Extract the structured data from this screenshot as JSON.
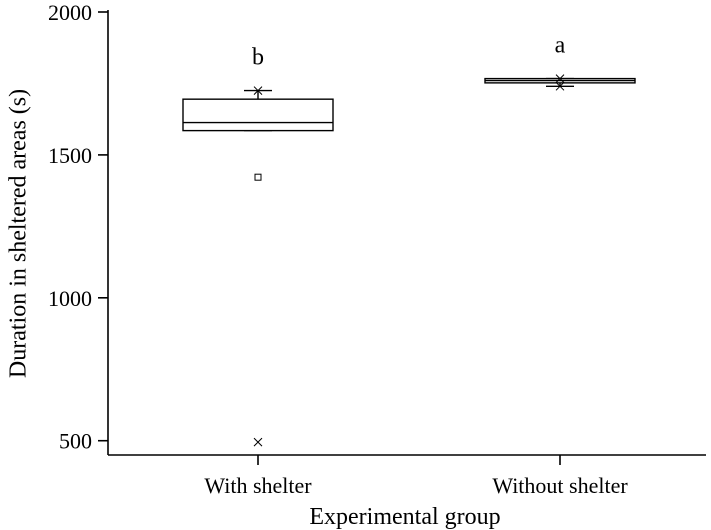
{
  "chart_data": {
    "type": "box",
    "xlabel": "Experimental group",
    "ylabel": "Duration in sheltered areas (s)",
    "ylim": [
      450,
      2000
    ],
    "yticks": [
      500,
      1000,
      1500,
      2000
    ],
    "grid": false,
    "legend": "none",
    "categories": [
      "With shelter",
      "Without shelter"
    ],
    "groups": [
      {
        "name": "With shelter",
        "significance_letter": "b",
        "q1": 1585,
        "median": 1613,
        "q3": 1695,
        "whisker_low": 1585,
        "whisker_high": 1725,
        "outliers_square": [
          1422
        ],
        "outliers_cross": [
          1725,
          495
        ]
      },
      {
        "name": "Without shelter",
        "significance_letter": "a",
        "q1": 1752,
        "median": 1760,
        "q3": 1767,
        "whisker_low": 1740,
        "whisker_high": 1767,
        "outliers_square": [],
        "outliers_cross": [
          1740,
          1767
        ]
      }
    ]
  }
}
